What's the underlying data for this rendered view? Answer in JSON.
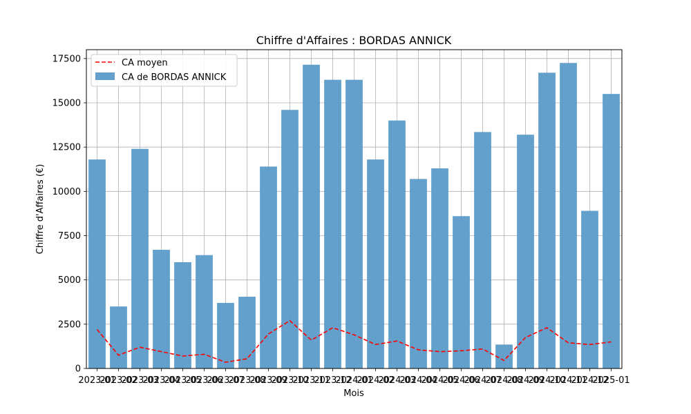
{
  "chart_data": {
    "type": "bar",
    "title": "Chiffre d'Affaires : BORDAS ANNICK",
    "xlabel": "Mois",
    "ylabel": "Chiffre d'Affaires (€)",
    "ylim": [
      0,
      18000
    ],
    "yticks": [
      0,
      2500,
      5000,
      7500,
      10000,
      12500,
      15000,
      17500
    ],
    "grid": true,
    "legend_position": "top-left",
    "categories": [
      "2023-01",
      "2023-02",
      "2023-03",
      "2023-04",
      "2023-05",
      "2023-06",
      "2023-07",
      "2023-08",
      "2023-09",
      "2023-10",
      "2023-11",
      "2023-12",
      "2024-01",
      "2024-02",
      "2024-03",
      "2024-04",
      "2024-05",
      "2024-06",
      "2024-07",
      "2024-08",
      "2024-09",
      "2024-10",
      "2024-11",
      "2024-12",
      "2025-01"
    ],
    "series": [
      {
        "name": "CA de BORDAS ANNICK",
        "type": "bar",
        "color": "#5b9bc8",
        "values": [
          11800,
          3500,
          12400,
          6700,
          6000,
          6400,
          3700,
          4050,
          11400,
          14600,
          17150,
          16300,
          16300,
          11800,
          14000,
          10700,
          11300,
          8600,
          13350,
          1350,
          13200,
          16700,
          17250,
          8900,
          15500
        ]
      },
      {
        "name": "CA moyen",
        "type": "line",
        "style": "dashed",
        "color": "#ff0000",
        "values": [
          2200,
          750,
          1200,
          950,
          700,
          800,
          350,
          550,
          1950,
          2700,
          1600,
          2300,
          1900,
          1350,
          1550,
          1050,
          950,
          1000,
          1100,
          450,
          1750,
          2300,
          1450,
          1350,
          1500
        ]
      }
    ]
  }
}
